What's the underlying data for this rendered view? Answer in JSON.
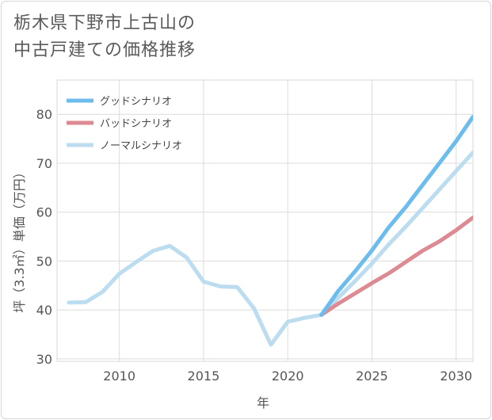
{
  "title": {
    "line1": "栃木県下野市上古山の",
    "line2": "中古戸建ての価格推移"
  },
  "chart_data": {
    "type": "line",
    "xlabel": "年",
    "ylabel": "坪（3.3㎡）単価（万円）",
    "xlim": [
      2006.3,
      2031
    ],
    "ylim": [
      29.5,
      87
    ],
    "xticks": [
      2010,
      2015,
      2020,
      2025,
      2030
    ],
    "yticks": [
      30,
      40,
      50,
      60,
      70,
      80
    ],
    "grid": true,
    "legend_position": "top-left",
    "series": [
      {
        "name": "グッドシナリオ",
        "color": "#6cbdee",
        "x": [
          2022,
          2023,
          2024,
          2025,
          2026,
          2027,
          2028,
          2029,
          2030,
          2031
        ],
        "values": [
          39,
          43.9,
          47.9,
          52.2,
          56.9,
          61,
          65.5,
          70,
          74.5,
          79.5
        ]
      },
      {
        "name": "バッドシナリオ",
        "color": "#de8a92",
        "x": [
          2022,
          2023,
          2024,
          2025,
          2026,
          2027,
          2028,
          2029,
          2030,
          2031
        ],
        "values": [
          39,
          41.3,
          43.4,
          45.5,
          47.5,
          49.8,
          52.1,
          54,
          56.3,
          58.9
        ]
      },
      {
        "name": "ノーマルシナリオ",
        "color": "#bcdcef",
        "x": [
          2007,
          2008,
          2009,
          2010,
          2011,
          2012,
          2013,
          2014,
          2015,
          2016,
          2017,
          2018,
          2019,
          2020,
          2021,
          2022,
          2023,
          2024,
          2025,
          2026,
          2027,
          2028,
          2029,
          2030,
          2031
        ],
        "values": [
          41.5,
          41.6,
          43.7,
          47.4,
          49.8,
          52.1,
          53.1,
          50.7,
          45.8,
          44.8,
          44.7,
          40.3,
          32.9,
          37.6,
          38.4,
          39,
          42.5,
          45.9,
          49.5,
          53.4,
          57,
          60.8,
          64.6,
          68.4,
          72.2
        ]
      }
    ]
  }
}
